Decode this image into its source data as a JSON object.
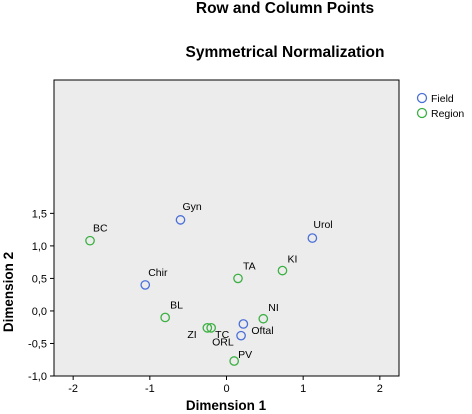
{
  "chart_data": {
    "type": "scatter",
    "title": "Row and Column Points",
    "subtitle": "Symmetrical Normalization",
    "xlabel": "Dimension 1",
    "ylabel": "Dimension 2",
    "xlim": [
      -2.25,
      2.25
    ],
    "ylim": [
      -1.0,
      3.55
    ],
    "xticks": [
      "-2",
      "-1",
      "0",
      "1",
      "2"
    ],
    "yticks": [
      "-1,0",
      "-0,5",
      "0,0",
      "0,5",
      "1,0",
      "1,5"
    ],
    "xtick_values": [
      -2,
      -1,
      0,
      1,
      2
    ],
    "ytick_values": [
      -1.0,
      -0.5,
      0.0,
      0.5,
      1.0,
      1.5
    ],
    "legend_position": "top-right",
    "grid": false,
    "series": [
      {
        "name": "Field",
        "color": "#4a6fd8",
        "points": [
          {
            "label": "Gyn",
            "x": -0.6,
            "y": 1.4
          },
          {
            "label": "Urol",
            "x": 1.12,
            "y": 1.12
          },
          {
            "label": "Chir",
            "x": -1.06,
            "y": 0.4
          },
          {
            "label": "Oftal",
            "x": 0.22,
            "y": -0.2
          },
          {
            "label": "ORL",
            "x": 0.19,
            "y": -0.38
          }
        ]
      },
      {
        "name": "Region",
        "color": "#3cb043",
        "points": [
          {
            "label": "BC",
            "x": -1.78,
            "y": 1.08
          },
          {
            "label": "TA",
            "x": 0.15,
            "y": 0.5
          },
          {
            "label": "KI",
            "x": 0.73,
            "y": 0.62
          },
          {
            "label": "BL",
            "x": -0.8,
            "y": -0.1
          },
          {
            "label": "NI",
            "x": 0.48,
            "y": -0.12
          },
          {
            "label": "ZI",
            "x": -0.25,
            "y": -0.26
          },
          {
            "label": "TC",
            "x": -0.2,
            "y": -0.26
          },
          {
            "label": "PV",
            "x": 0.1,
            "y": -0.77
          }
        ]
      }
    ]
  }
}
